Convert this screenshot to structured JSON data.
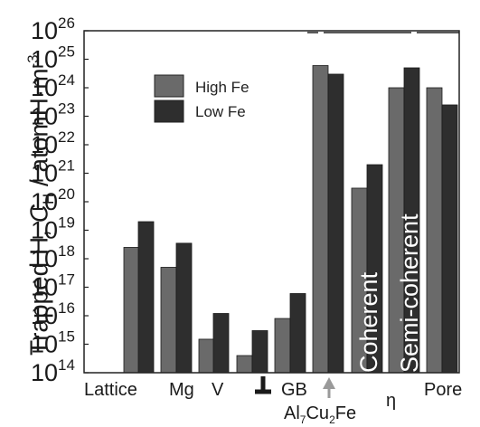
{
  "chart_data": {
    "type": "bar",
    "yscale": "log",
    "ylim_exponent": [
      14,
      26
    ],
    "ylabel": {
      "main": "Trapped H, ",
      "symbol": "C",
      "symbol_sub": "H",
      "unit": " / atomH·m",
      "unit_sup": "-3"
    },
    "series": [
      {
        "name": "High Fe",
        "color": "#6a6a6a"
      },
      {
        "name": "Low Fe",
        "color": "#2e2e2e"
      }
    ],
    "categories": [
      {
        "label": "Lattice",
        "values": [
          2.5e+18,
          2e+19
        ]
      },
      {
        "label": "Mg",
        "values": [
          5e+17,
          3.5e+18
        ]
      },
      {
        "label": "V",
        "values": [
          1500000000000000.0,
          1.2e+16
        ]
      },
      {
        "label": "dislocation",
        "values": [
          400000000000000.0,
          3000000000000000.0
        ]
      },
      {
        "label": "GB",
        "values": [
          8000000000000000.0,
          6e+16
        ]
      },
      {
        "label": "Al7Cu2Fe",
        "values": [
          6e+24,
          3e+24
        ]
      },
      {
        "label": "Coherent",
        "values": [
          3e+20,
          2e+21
        ]
      },
      {
        "label": "Semi-coherent",
        "values": [
          1e+24,
          5e+24
        ]
      },
      {
        "label": "Pore",
        "values": [
          1e+24,
          2.5e+23
        ]
      }
    ],
    "xlabels": {
      "lattice": "Lattice",
      "mg": "Mg",
      "v": "V",
      "gb": "GB",
      "al": "Al",
      "al_sub1": "7",
      "cu": "Cu",
      "al_sub2": "2",
      "fe": "Fe",
      "eta": "η",
      "pore": "Pore"
    },
    "bar_annotations": {
      "coherent": "Coherent",
      "semi": "Semi-coherent"
    },
    "legend": {
      "position": "top-left",
      "labels": [
        "High Fe",
        "Low Fe"
      ]
    },
    "grid": false
  }
}
